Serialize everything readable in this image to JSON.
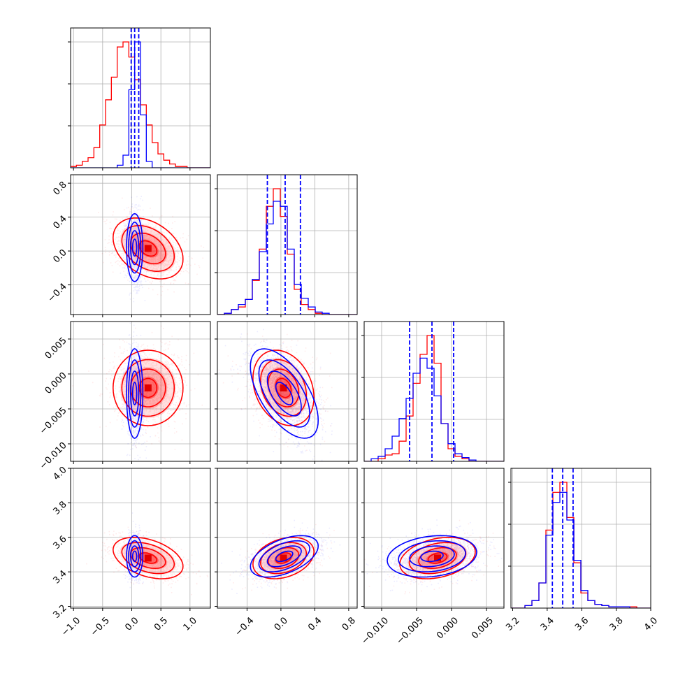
{
  "chart_data": {
    "type": "corner",
    "title": "",
    "parameters": [
      {
        "index": 0,
        "range": [
          -1.05,
          1.35
        ],
        "ticks": [
          -1.0,
          -0.5,
          0.0,
          0.5,
          1.0
        ],
        "tick_labels": [
          "−1.0",
          "−0.5",
          "0.0",
          "0.5",
          "1.0"
        ]
      },
      {
        "index": 1,
        "range": [
          -0.75,
          0.9
        ],
        "ticks": [
          -0.4,
          0.0,
          0.4,
          0.8
        ],
        "tick_labels": [
          "−0.4",
          "0.0",
          "0.4",
          "0.8"
        ]
      },
      {
        "index": 2,
        "range": [
          -0.0125,
          0.0075
        ],
        "ticks": [
          -0.01,
          -0.005,
          0.0,
          0.005
        ],
        "tick_labels": [
          "−0.010",
          "−0.005",
          "0.000",
          "0.005"
        ]
      },
      {
        "index": 3,
        "range": [
          3.19,
          4.0
        ],
        "ticks": [
          3.2,
          3.4,
          3.6,
          3.8,
          4.0
        ],
        "tick_labels": [
          "3.2",
          "3.4",
          "3.6",
          "3.8",
          "4.0"
        ]
      }
    ],
    "series": [
      {
        "color": "#ff0000",
        "means": [
          0.28,
          0.03,
          -0.002,
          3.48
        ],
        "stds": [
          0.3,
          0.18,
          0.0027,
          0.06
        ],
        "corr": [
          [
            0,
            1,
            -0.35
          ],
          [
            0,
            2,
            0.0
          ],
          [
            0,
            3,
            -0.4
          ],
          [
            1,
            2,
            -0.25
          ],
          [
            1,
            3,
            0.3
          ],
          [
            2,
            3,
            0.3
          ]
        ],
        "histograms": [
          {
            "edges_range": [
              -1.05,
              1.35
            ],
            "bins": 24,
            "counts": [
              0.01,
              0.02,
              0.05,
              0.08,
              0.16,
              0.34,
              0.54,
              0.72,
              0.96,
              1.0,
              0.88,
              0.7,
              0.5,
              0.34,
              0.2,
              0.11,
              0.06,
              0.03,
              0.01,
              0.01,
              0.0,
              0.0,
              0.0,
              0.0
            ]
          },
          {
            "edges_range": [
              -0.75,
              0.9
            ],
            "bins": 20,
            "counts": [
              0.0,
              0.01,
              0.04,
              0.06,
              0.12,
              0.27,
              0.52,
              0.86,
              1.0,
              0.78,
              0.48,
              0.2,
              0.08,
              0.04,
              0.01,
              0.0,
              0.0,
              0.0,
              0.0,
              0.0
            ]
          },
          {
            "edges_range": [
              -0.0125,
              0.0075
            ],
            "bins": 20,
            "counts": [
              0.0,
              0.0,
              0.02,
              0.05,
              0.06,
              0.16,
              0.36,
              0.62,
              0.85,
              1.0,
              0.78,
              0.3,
              0.1,
              0.04,
              0.02,
              0.0,
              0.0,
              0.0,
              0.0,
              0.0
            ]
          },
          {
            "edges_range": [
              3.19,
              4.0
            ],
            "bins": 20,
            "counts": [
              0.0,
              0.0,
              0.02,
              0.06,
              0.2,
              0.62,
              0.92,
              1.0,
              0.72,
              0.36,
              0.12,
              0.06,
              0.03,
              0.02,
              0.01,
              0.01,
              0.01,
              0.01,
              0.0,
              0.0
            ]
          }
        ],
        "quantiles": null
      },
      {
        "color": "#0000ff",
        "means": [
          0.05,
          0.04,
          -0.0028,
          3.49
        ],
        "stds": [
          0.07,
          0.2,
          0.0032,
          0.06
        ],
        "corr": [
          [
            0,
            1,
            0.0
          ],
          [
            0,
            2,
            0.0
          ],
          [
            0,
            3,
            0.0
          ],
          [
            1,
            2,
            -0.6
          ],
          [
            1,
            3,
            0.5
          ],
          [
            2,
            3,
            0.2
          ]
        ],
        "histograms": [
          {
            "edges_range": [
              -1.05,
              1.35
            ],
            "bins": 24,
            "counts": [
              0,
              0,
              0,
              0,
              0,
              0,
              0,
              0,
              0.02,
              0.1,
              0.62,
              1.0,
              0.42,
              0.05,
              0,
              0,
              0,
              0,
              0,
              0,
              0,
              0,
              0,
              0
            ]
          },
          {
            "edges_range": [
              -0.75,
              0.9
            ],
            "bins": 20,
            "counts": [
              0.0,
              0.01,
              0.04,
              0.08,
              0.12,
              0.28,
              0.5,
              0.72,
              0.9,
              0.86,
              0.52,
              0.24,
              0.13,
              0.06,
              0.02,
              0.01,
              0.0,
              0.0,
              0.0,
              0.0
            ]
          },
          {
            "edges_range": [
              -0.0125,
              0.0075
            ],
            "bins": 20,
            "counts": [
              0.0,
              0.02,
              0.04,
              0.1,
              0.2,
              0.34,
              0.5,
              0.7,
              0.82,
              0.74,
              0.52,
              0.3,
              0.14,
              0.06,
              0.03,
              0.01,
              0.0,
              0.0,
              0.0,
              0.0
            ]
          },
          {
            "edges_range": [
              3.19,
              4.0
            ],
            "bins": 20,
            "counts": [
              0.0,
              0.0,
              0.02,
              0.06,
              0.2,
              0.58,
              0.84,
              0.92,
              0.7,
              0.38,
              0.14,
              0.06,
              0.03,
              0.02,
              0.01,
              0.01,
              0.01,
              0.0,
              0.0,
              0.0
            ]
          }
        ],
        "quantiles": [
          [
            -0.01,
            0.05,
            0.12
          ],
          [
            -0.16,
            0.05,
            0.23
          ],
          [
            -0.006,
            -0.0028,
            0.0003
          ],
          [
            3.43,
            3.49,
            3.55
          ]
        ]
      }
    ],
    "grid": true,
    "legend": null
  }
}
